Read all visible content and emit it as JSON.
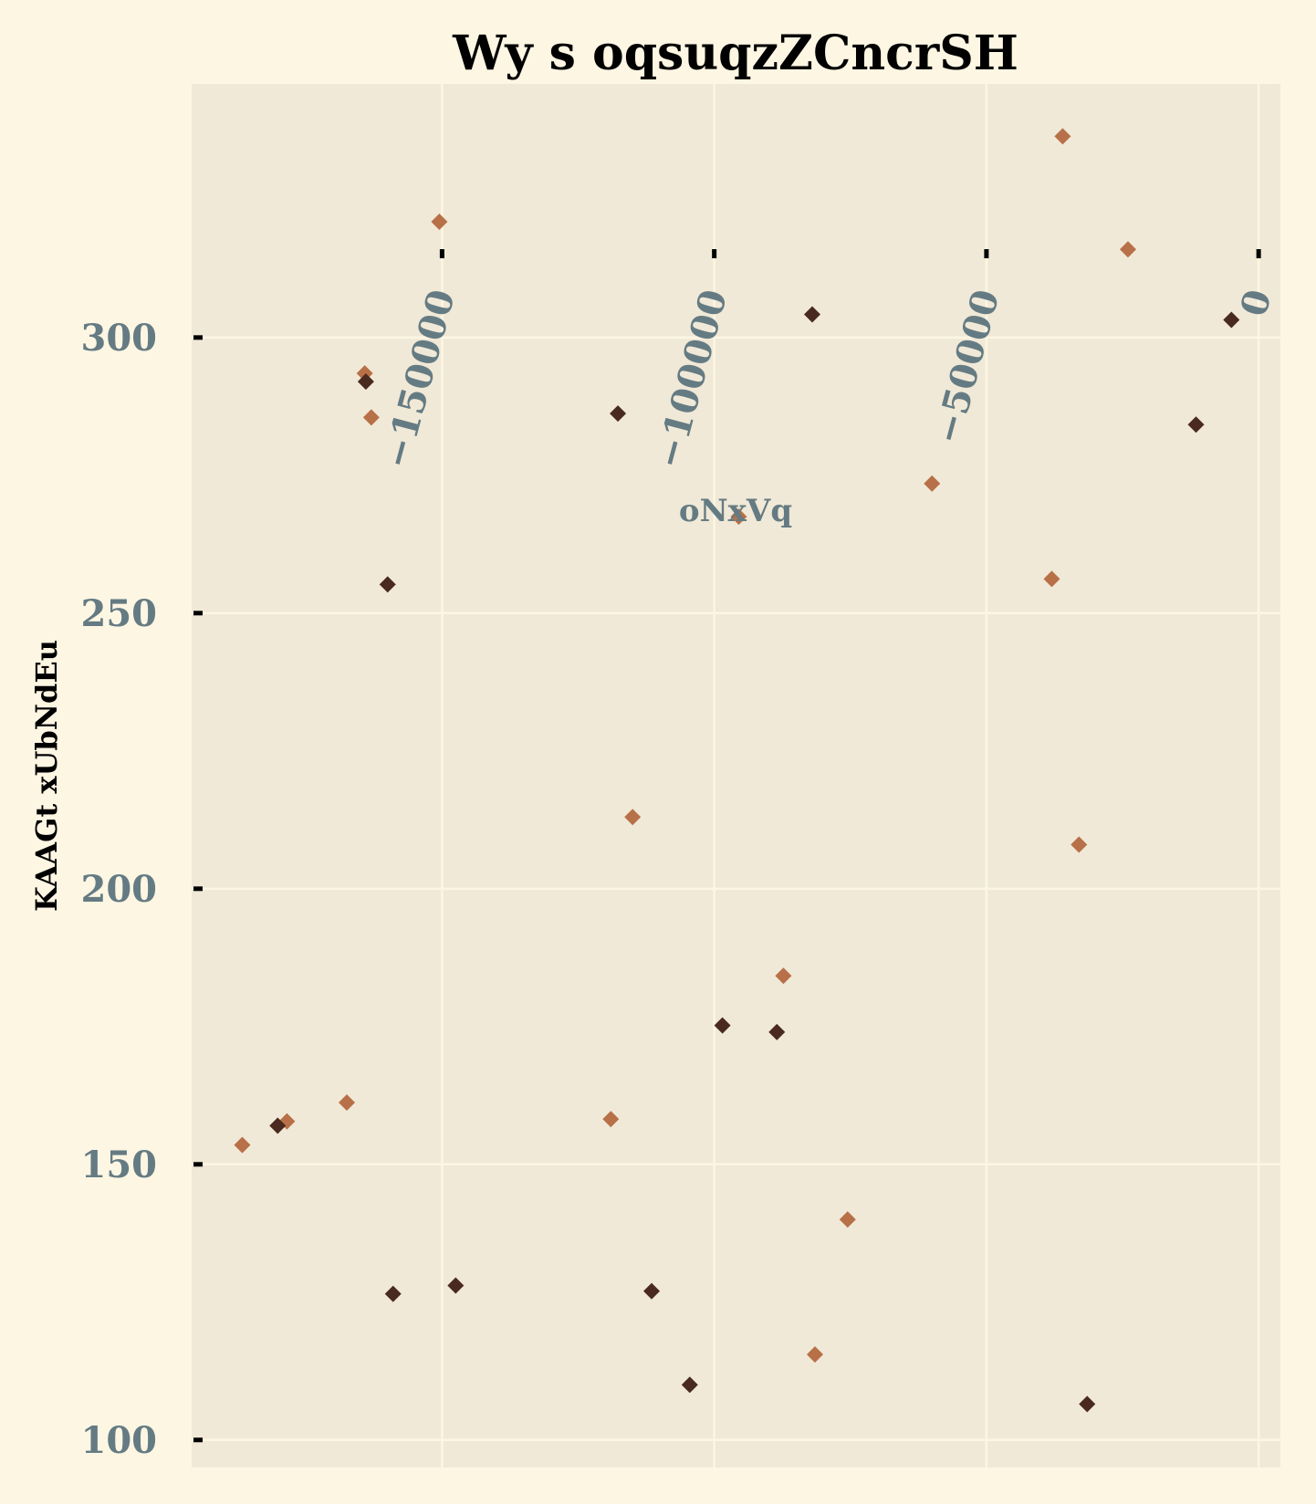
{
  "chart_data": {
    "type": "scatter",
    "title": "Wy s  oqsuqzZCncrSH",
    "xlabel": "oNxVq",
    "ylabel": "KAAGt xUbNdEu",
    "xlim": [
      -196000,
      4000
    ],
    "ylim": [
      95,
      346
    ],
    "x_ticks": [
      -150000,
      -100000,
      -50000,
      0
    ],
    "x_tick_labels": [
      "−150000",
      "−100000",
      "−50000",
      "0"
    ],
    "y_ticks": [
      100,
      150,
      200,
      250,
      300
    ],
    "y_tick_labels": [
      "100",
      "150",
      "200",
      "250",
      "300"
    ],
    "grid": true,
    "colors": {
      "background": "#fdf6e3",
      "plot_area": "#f0e9d7",
      "grid": "#fdf6e3",
      "tick_text": "#657b83",
      "series_a": "#b87048",
      "series_b": "#4a2a1e"
    },
    "series": [
      {
        "color": "#b87048",
        "marker": "diamond",
        "points": [
          {
            "x": -186700,
            "y": 153.5
          },
          {
            "x": -178500,
            "y": 157.8
          },
          {
            "x": -167500,
            "y": 161.2
          },
          {
            "x": -164200,
            "y": 293.5
          },
          {
            "x": -163000,
            "y": 285.5
          },
          {
            "x": -150500,
            "y": 321.0
          },
          {
            "x": -119000,
            "y": 158.2
          },
          {
            "x": -115000,
            "y": 213.0
          },
          {
            "x": -95500,
            "y": 267.5
          },
          {
            "x": -87300,
            "y": 184.2
          },
          {
            "x": -81500,
            "y": 115.5
          },
          {
            "x": -75500,
            "y": 140.0
          },
          {
            "x": -60000,
            "y": 273.5
          },
          {
            "x": -38000,
            "y": 256.2
          },
          {
            "x": -36000,
            "y": 336.5
          },
          {
            "x": -33000,
            "y": 208.0
          },
          {
            "x": -24000,
            "y": 316.0
          }
        ]
      },
      {
        "color": "#4a2a1e",
        "marker": "diamond",
        "points": [
          {
            "x": -180200,
            "y": 157.0
          },
          {
            "x": -164000,
            "y": 292.0
          },
          {
            "x": -160000,
            "y": 255.2
          },
          {
            "x": -159000,
            "y": 126.5
          },
          {
            "x": -147500,
            "y": 128.0
          },
          {
            "x": -117700,
            "y": 286.2
          },
          {
            "x": -111500,
            "y": 127.0
          },
          {
            "x": -104500,
            "y": 110.0
          },
          {
            "x": -98500,
            "y": 175.2
          },
          {
            "x": -88500,
            "y": 174.0
          },
          {
            "x": -82000,
            "y": 304.2
          },
          {
            "x": -31500,
            "y": 106.5
          },
          {
            "x": -11500,
            "y": 284.2
          },
          {
            "x": -5000,
            "y": 303.2
          }
        ]
      }
    ]
  }
}
